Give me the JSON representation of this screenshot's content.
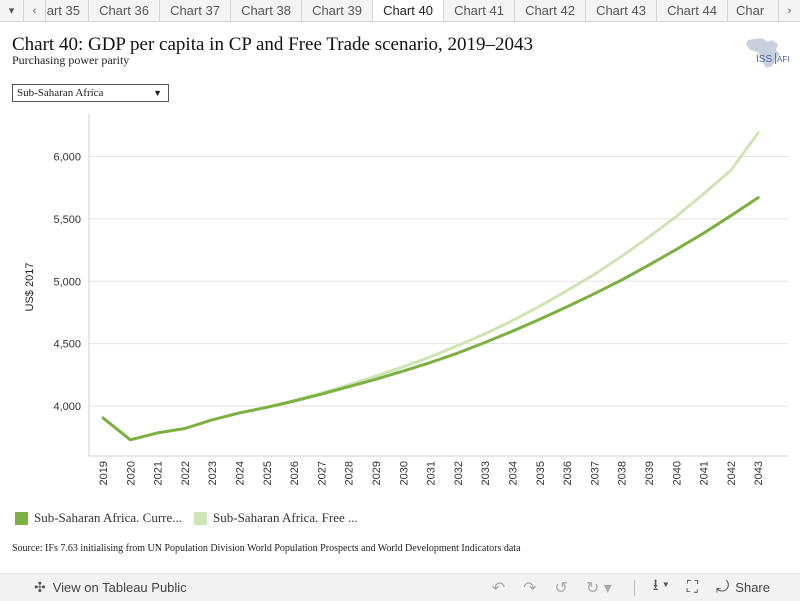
{
  "tabs": {
    "items": [
      "art 35",
      "Chart 36",
      "Chart 37",
      "Chart 38",
      "Chart 39",
      "Chart 40",
      "Chart 41",
      "Chart 42",
      "Chart 43",
      "Chart 44",
      "Char"
    ],
    "active_index": 5
  },
  "header": {
    "title": "Chart 40: GDP per capita in CP and Free Trade scenario, 2019–2043",
    "subtitle": "Purchasing power parity",
    "logo_text": "ISS AFRICA"
  },
  "filter": {
    "selected": "Sub-Saharan Africa"
  },
  "colors": {
    "current_path": "#7cb142",
    "free_trade": "#cde6b3",
    "grid": "#e4e4e4",
    "axis": "#d0d0d0"
  },
  "chart_data": {
    "type": "line",
    "title": "Chart 40: GDP per capita in CP and Free Trade scenario, 2019–2043",
    "subtitle": "Purchasing power parity",
    "xlabel": "",
    "ylabel": "US$ 2017",
    "x": [
      "2019",
      "2020",
      "2021",
      "2022",
      "2023",
      "2024",
      "2025",
      "2026",
      "2027",
      "2028",
      "2029",
      "2030",
      "2031",
      "2032",
      "2033",
      "2034",
      "2035",
      "2036",
      "2037",
      "2038",
      "2039",
      "2040",
      "2041",
      "2042",
      "2043"
    ],
    "yticks": [
      4000,
      4500,
      5000,
      5500,
      6000
    ],
    "ytick_labels": [
      "4,000",
      "4,500",
      "5,000",
      "5,500",
      "6,000"
    ],
    "ylim": [
      3600,
      6340
    ],
    "grid": true,
    "legend_position": "bottom-left",
    "series": [
      {
        "name": "Sub-Saharan Africa. Curre...",
        "color": "#7cb142",
        "values": [
          3905,
          3730,
          3785,
          3820,
          3890,
          3945,
          3990,
          4040,
          4095,
          4155,
          4215,
          4280,
          4350,
          4425,
          4510,
          4600,
          4695,
          4795,
          4900,
          5010,
          5130,
          5255,
          5385,
          5525,
          5670
        ]
      },
      {
        "name": "Sub-Saharan Africa. Free ...",
        "color": "#cde6b3",
        "values": [
          null,
          null,
          null,
          null,
          null,
          null,
          3990,
          4045,
          4105,
          4170,
          4240,
          4315,
          4395,
          4485,
          4580,
          4685,
          4800,
          4925,
          5055,
          5200,
          5355,
          5520,
          5700,
          5890,
          6190
        ]
      }
    ]
  },
  "source": "Source: IFs 7.63 initialising from UN Population Division World Population Prospects and World Development Indicators data",
  "toolbar": {
    "view_label": "View on Tableau Public",
    "share_label": "Share"
  }
}
